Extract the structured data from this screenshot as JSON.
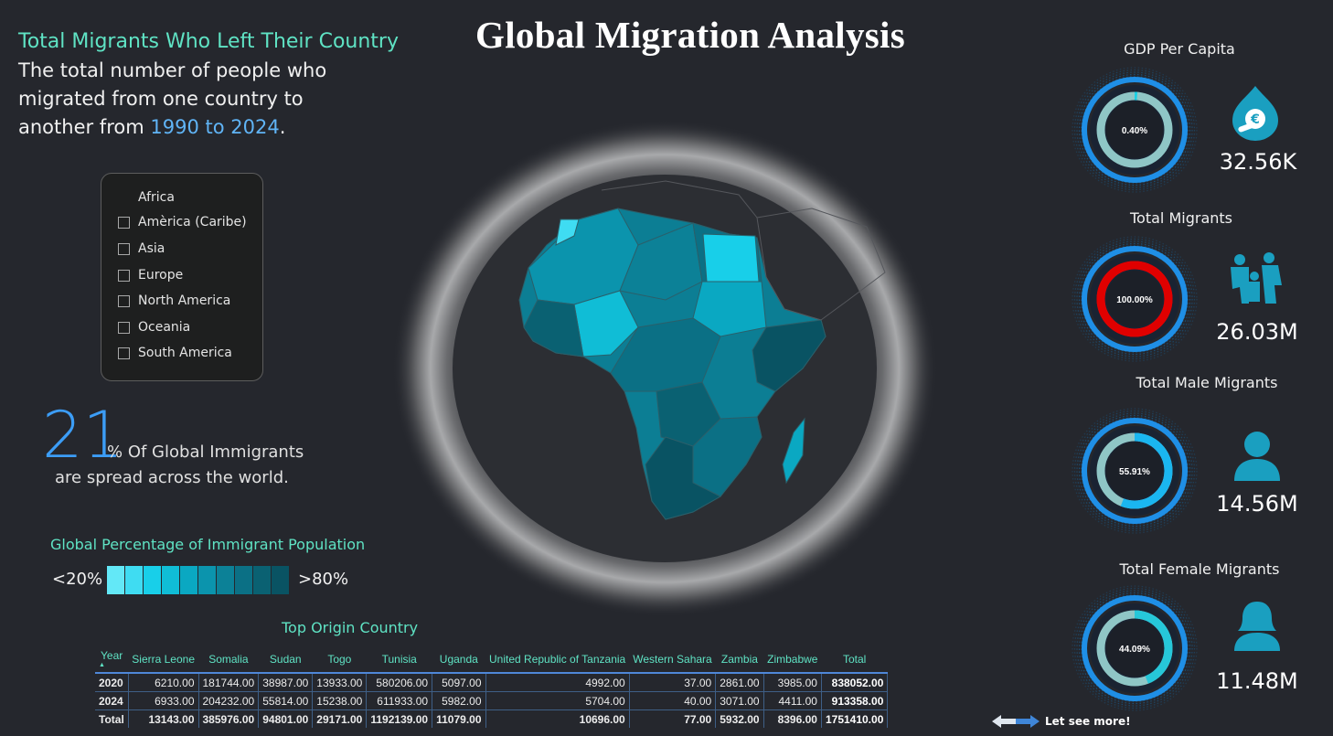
{
  "title": "Global Migration Analysis",
  "intro": {
    "heading": "Total Migrants Who Left Their Country",
    "body_before": "The total number of people who migrated from one country to another from ",
    "years": "1990 to 2024",
    "body_after": "."
  },
  "region_slicer": {
    "selected": "Africa",
    "items": [
      "America (Caribe)",
      "Asia",
      "Europe",
      "North America",
      "Oceania",
      "South America"
    ],
    "items_display": [
      "Amèrica (Caribe)",
      "Asia",
      "Europe",
      "North America",
      "Oceania",
      "South America"
    ]
  },
  "global_stat": {
    "value": "21",
    "text_line1": "% Of Global Immigrants",
    "text_line2": "are spread across the world."
  },
  "legend": {
    "title": "Global Percentage of Immigrant Population",
    "low_label": "<20%",
    "high_label": ">80%",
    "colors": [
      "#63e8f7",
      "#3fdcf2",
      "#18cfe9",
      "#10bdd6",
      "#0aa8c2",
      "#0b94ad",
      "#0c8197",
      "#0b7085",
      "#0a6172",
      "#095363"
    ]
  },
  "table": {
    "title": "Top Origin Country",
    "columns": [
      "Year",
      "Sierra Leone",
      "Somalia",
      "Sudan",
      "Togo",
      "Tunisia",
      "Uganda",
      "United Republic of Tanzania",
      "Western Sahara",
      "Zambia",
      "Zimbabwe",
      "Total"
    ],
    "rows": [
      [
        "2020",
        "6210.00",
        "181744.00",
        "38987.00",
        "13933.00",
        "580206.00",
        "5097.00",
        "4992.00",
        "37.00",
        "2861.00",
        "3985.00",
        "838052.00"
      ],
      [
        "2024",
        "6933.00",
        "204232.00",
        "55814.00",
        "15238.00",
        "611933.00",
        "5982.00",
        "5704.00",
        "40.00",
        "3071.00",
        "4411.00",
        "913358.00"
      ],
      [
        "Total",
        "13143.00",
        "385976.00",
        "94801.00",
        "29171.00",
        "1192139.00",
        "11079.00",
        "10696.00",
        "77.00",
        "5932.00",
        "8396.00",
        "1751410.00"
      ]
    ]
  },
  "kpis": [
    {
      "title": "GDP Per Capita",
      "gauge_label": "0.40%",
      "gauge_percent": 0.4,
      "value": "32.56K",
      "icon": "money-hand-icon",
      "ring_color": "#1ad1e5",
      "track_color": "#8fc6c6"
    },
    {
      "title": "Total Migrants",
      "gauge_label": "100.00%",
      "gauge_percent": 100,
      "value": "26.03M",
      "icon": "family-icon",
      "ring_color": "#e00000",
      "track_color": "#e00000"
    },
    {
      "title": "Total Male Migrants",
      "gauge_label": "55.91%",
      "gauge_percent": 55.91,
      "value": "14.56M",
      "icon": "male-user-icon",
      "ring_color": "#1ab6f0",
      "track_color": "#8fc6c6"
    },
    {
      "title": "Total Female Migrants",
      "gauge_label": "44.09%",
      "gauge_percent": 44.09,
      "value": "11.48M",
      "icon": "female-user-icon",
      "ring_color": "#26c7d9",
      "track_color": "#8fc6c6"
    }
  ],
  "navigation": {
    "see_more_label": "Let see more!",
    "icon": "arrow-swap-icon"
  }
}
